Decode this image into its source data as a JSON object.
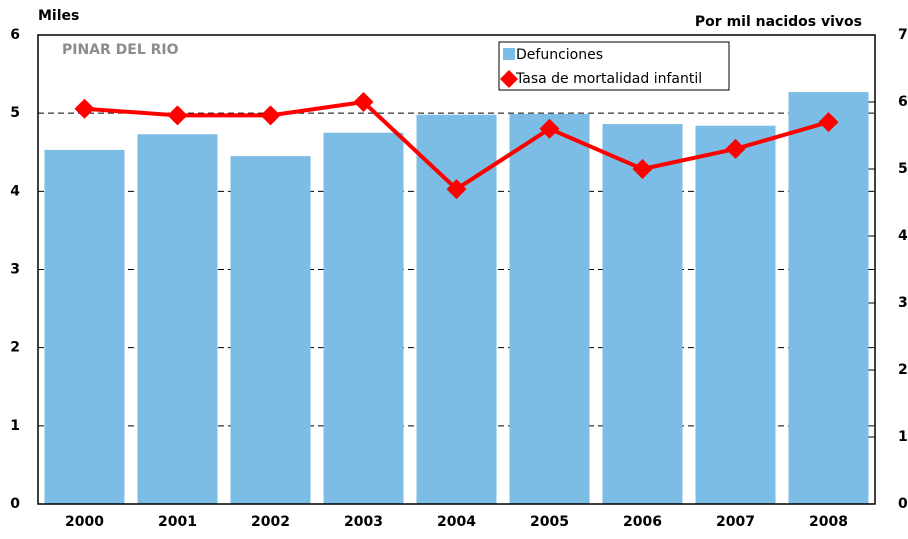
{
  "chart_data": {
    "type": "bar_line",
    "y_label": "Miles",
    "y2_label": "Por mil nacidos vivos",
    "annotation": "PINAR DEL RIO",
    "categories": [
      "2000",
      "2001",
      "2002",
      "2003",
      "2004",
      "2005",
      "2006",
      "2007",
      "2008"
    ],
    "series": [
      {
        "name": "Defunciones",
        "type": "bar",
        "color": "#7bbde4",
        "values": [
          4.53,
          4.73,
          4.45,
          4.75,
          4.98,
          4.99,
          4.86,
          4.84,
          5.27
        ]
      },
      {
        "name": "Tasa de mortalidad infantil",
        "type": "line",
        "axis": "y2",
        "color": "#ff0000",
        "values": [
          5.9,
          5.8,
          5.8,
          6.0,
          4.7,
          5.6,
          5.0,
          5.3,
          5.7
        ]
      }
    ],
    "ylim": [
      0,
      6
    ],
    "yticks": [
      0,
      1,
      2,
      3,
      4,
      5,
      6
    ],
    "y2lim": [
      0,
      7
    ],
    "y2ticks": [
      0,
      1,
      2,
      3,
      4,
      5,
      6,
      7
    ],
    "grid": true
  }
}
